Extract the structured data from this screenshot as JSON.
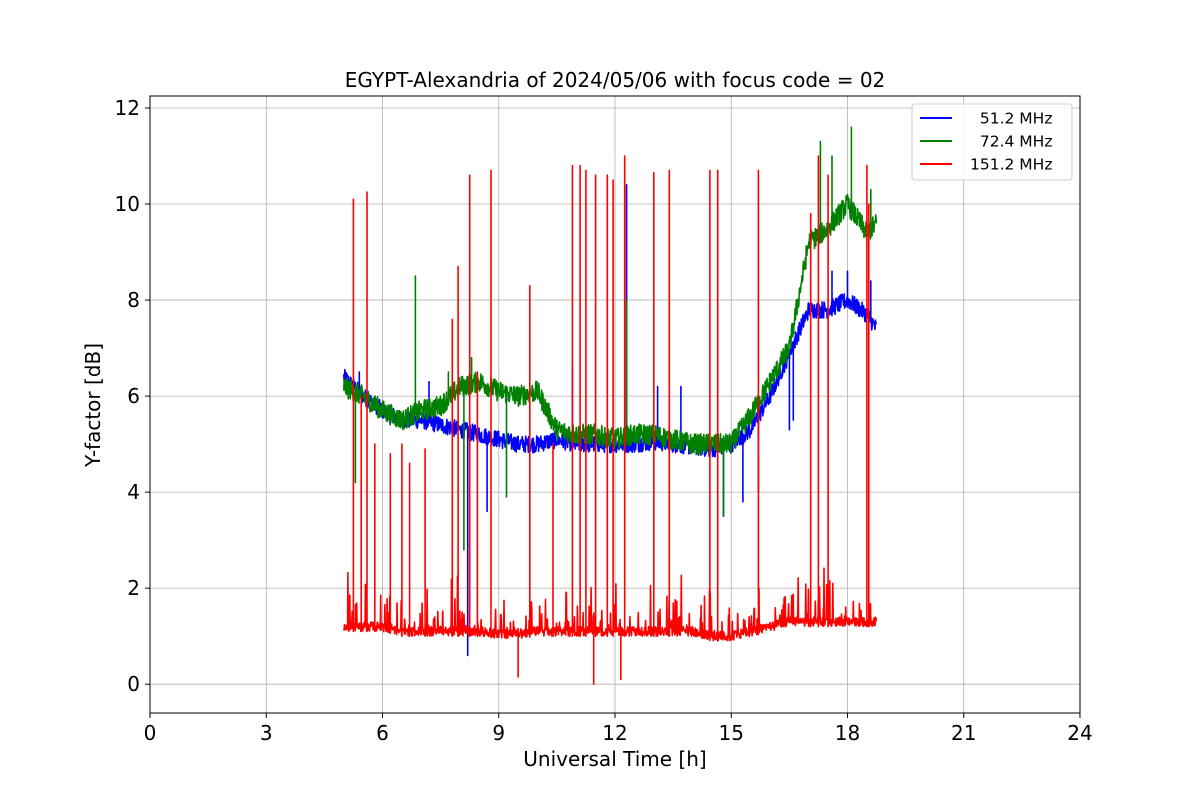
{
  "chart_data": {
    "type": "line",
    "title": "EGYPT-Alexandria of 2024/05/06 with focus code = 02",
    "xlabel": "Universal Time [h]",
    "ylabel": "Y-factor [dB]",
    "xlim": [
      0,
      24
    ],
    "ylim": [
      -0.6,
      12.25
    ],
    "xticks": [
      0,
      3,
      6,
      9,
      12,
      15,
      18,
      21,
      24
    ],
    "yticks": [
      0,
      2,
      4,
      6,
      8,
      10,
      12
    ],
    "grid": true,
    "legend_position": "top-right",
    "series": [
      {
        "name": "  51.2 MHz",
        "color": "#0000ff",
        "x": [
          5.0,
          5.5,
          6.0,
          6.5,
          7.0,
          7.5,
          8.0,
          8.5,
          9.0,
          9.5,
          10.0,
          10.5,
          11.0,
          11.5,
          12.0,
          12.5,
          13.0,
          13.5,
          14.0,
          14.5,
          15.0,
          15.5,
          16.0,
          16.5,
          17.0,
          17.5,
          18.0,
          18.5,
          18.75
        ],
        "y": [
          6.4,
          6.0,
          5.7,
          5.5,
          5.5,
          5.4,
          5.3,
          5.2,
          5.1,
          5.0,
          5.0,
          5.1,
          5.0,
          5.0,
          5.0,
          5.0,
          5.05,
          5.0,
          4.95,
          4.9,
          5.0,
          5.3,
          6.0,
          6.9,
          7.8,
          7.8,
          8.0,
          7.7,
          7.4
        ],
        "spikes": [
          [
            5.4,
            6.5
          ],
          [
            7.2,
            6.3
          ],
          [
            8.7,
            3.6
          ],
          [
            8.2,
            0.6
          ],
          [
            10.9,
            6.6
          ],
          [
            12.3,
            10.4
          ],
          [
            13.1,
            6.2
          ],
          [
            13.7,
            6.2
          ],
          [
            14.8,
            3.5
          ],
          [
            15.3,
            3.8
          ],
          [
            15.7,
            4.0
          ],
          [
            16.5,
            5.3
          ],
          [
            16.6,
            5.5
          ],
          [
            17.6,
            8.6
          ],
          [
            18.0,
            8.6
          ],
          [
            18.6,
            8.4
          ]
        ],
        "noise": 0.18
      },
      {
        "name": "  72.4 MHz",
        "color": "#008000",
        "x": [
          5.0,
          5.5,
          6.0,
          6.5,
          7.0,
          7.5,
          8.0,
          8.5,
          9.0,
          9.5,
          10.0,
          10.5,
          11.0,
          11.5,
          12.0,
          12.5,
          13.0,
          13.5,
          14.0,
          14.5,
          15.0,
          15.5,
          16.0,
          16.5,
          17.0,
          17.5,
          18.0,
          18.5,
          18.75
        ],
        "y": [
          6.2,
          6.0,
          5.7,
          5.5,
          5.7,
          5.8,
          6.2,
          6.3,
          6.1,
          6.0,
          6.1,
          5.3,
          5.2,
          5.2,
          5.1,
          5.2,
          5.2,
          5.1,
          5.0,
          5.0,
          5.0,
          5.6,
          6.3,
          7.0,
          9.2,
          9.5,
          10.0,
          9.4,
          9.6
        ],
        "spikes": [
          [
            5.3,
            4.2
          ],
          [
            6.85,
            8.5
          ],
          [
            7.7,
            6.5
          ],
          [
            8.1,
            2.8
          ],
          [
            8.3,
            6.8
          ],
          [
            9.2,
            3.9
          ],
          [
            10.5,
            5.2
          ],
          [
            12.3,
            8.0
          ],
          [
            14.8,
            3.5
          ],
          [
            17.3,
            11.3
          ],
          [
            17.6,
            11.0
          ],
          [
            18.1,
            11.6
          ],
          [
            18.6,
            10.3
          ]
        ],
        "noise": 0.22
      },
      {
        "name": "151.2 MHz",
        "color": "#ff0000",
        "x": [
          5.0,
          5.5,
          6.0,
          6.5,
          7.0,
          7.5,
          8.0,
          8.5,
          9.0,
          9.5,
          10.0,
          10.5,
          11.0,
          11.5,
          12.0,
          12.5,
          13.0,
          13.5,
          14.0,
          14.5,
          15.0,
          15.5,
          16.0,
          16.5,
          17.0,
          17.5,
          18.0,
          18.5,
          18.75
        ],
        "y": [
          1.1,
          1.1,
          1.1,
          1.0,
          1.0,
          1.0,
          1.0,
          1.0,
          0.95,
          0.95,
          1.0,
          1.0,
          1.0,
          1.0,
          1.0,
          1.0,
          1.0,
          1.0,
          1.0,
          0.9,
          0.9,
          1.0,
          1.1,
          1.2,
          1.2,
          1.2,
          1.2,
          1.2,
          1.2
        ],
        "spikes": [
          [
            5.25,
            10.1
          ],
          [
            5.45,
            6.0
          ],
          [
            5.6,
            10.25
          ],
          [
            5.8,
            5.0
          ],
          [
            6.2,
            4.8
          ],
          [
            6.5,
            5.0
          ],
          [
            6.7,
            4.6
          ],
          [
            7.1,
            4.9
          ],
          [
            7.8,
            7.6
          ],
          [
            7.95,
            8.7
          ],
          [
            8.25,
            10.6
          ],
          [
            8.45,
            6.5
          ],
          [
            8.8,
            10.7
          ],
          [
            9.8,
            8.3
          ],
          [
            10.4,
            5.0
          ],
          [
            10.9,
            10.8
          ],
          [
            11.1,
            10.8
          ],
          [
            11.25,
            10.7
          ],
          [
            11.5,
            10.6
          ],
          [
            11.8,
            10.6
          ],
          [
            11.95,
            10.5
          ],
          [
            12.25,
            11.0
          ],
          [
            12.15,
            0.1
          ],
          [
            11.45,
            0.0
          ],
          [
            9.5,
            0.15
          ],
          [
            13.0,
            10.65
          ],
          [
            13.4,
            10.7
          ],
          [
            14.45,
            10.7
          ],
          [
            14.65,
            10.7
          ],
          [
            15.7,
            10.7
          ],
          [
            17.05,
            9.8
          ],
          [
            17.25,
            11.0
          ],
          [
            17.5,
            10.6
          ],
          [
            18.5,
            10.8
          ],
          [
            18.55,
            10.0
          ]
        ],
        "noise": 0.22
      }
    ]
  }
}
